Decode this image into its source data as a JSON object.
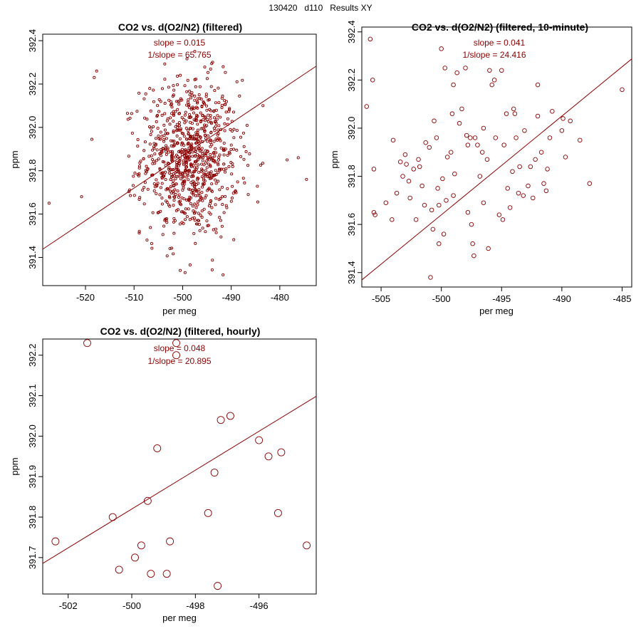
{
  "page": {
    "title": "130420   d110   Results XY"
  },
  "accent_color": "#8B0000",
  "chart_data": [
    {
      "type": "scatter",
      "title": "CO2 vs. d(O2/N2) (filtered)",
      "xlabel": "per meg",
      "ylabel": "ppm",
      "xlim": [
        -528.8,
        -472.5
      ],
      "ylim": [
        391.27,
        392.43
      ],
      "xticks": [
        -520,
        -510,
        -500,
        -490,
        -480
      ],
      "yticks": [
        391.4,
        391.6,
        391.8,
        392.0,
        392.2,
        392.4
      ],
      "annotations": [
        "slope = 0.015",
        "1/slope = 65.765"
      ],
      "fit": {
        "slope": 0.015,
        "intercept": 399.37
      },
      "marker_size": "small",
      "n_points": 900,
      "point_cloud": {
        "x_center": -498.5,
        "x_spread": 5.0,
        "y_center": 391.86,
        "y_spread": 0.18,
        "note_points": [
          [
            -527.5,
            391.65
          ],
          [
            -520.8,
            391.68
          ],
          [
            -517.7,
            392.26
          ],
          [
            -518.2,
            392.23
          ],
          [
            -474.5,
            391.76
          ],
          [
            -476.2,
            391.86
          ],
          [
            -478.5,
            391.85
          ],
          [
            -500.5,
            391.34
          ],
          [
            -499.5,
            391.33
          ],
          [
            -497.5,
            392.35
          ],
          [
            -486.5,
            391.69
          ]
        ]
      }
    },
    {
      "type": "scatter",
      "title": "CO2 vs. d(O2/N2) (filtered, 10-minute)",
      "xlabel": "per meg",
      "ylabel": "ppm",
      "xlim": [
        -506.6,
        -484.2
      ],
      "ylim": [
        391.34,
        392.42
      ],
      "xticks": [
        -505,
        -500,
        -495,
        -490,
        -485
      ],
      "yticks": [
        391.4,
        391.6,
        391.8,
        392.0,
        392.2,
        392.4
      ],
      "annotations": [
        "slope = 0.041",
        "1/slope = 24.416"
      ],
      "fit": {
        "slope": 0.041,
        "intercept": 412.14
      },
      "marker_size": "medium",
      "points": [
        [
          -505.9,
          392.37
        ],
        [
          -506.2,
          392.09
        ],
        [
          -505.7,
          392.2
        ],
        [
          -505.6,
          391.83
        ],
        [
          -505.5,
          391.64
        ],
        [
          -505.6,
          391.65
        ],
        [
          -504.6,
          391.69
        ],
        [
          -504.1,
          391.62
        ],
        [
          -503.7,
          391.73
        ],
        [
          -503.4,
          391.86
        ],
        [
          -503.0,
          391.89
        ],
        [
          -502.9,
          391.85
        ],
        [
          -502.7,
          391.78
        ],
        [
          -502.6,
          391.71
        ],
        [
          -502.3,
          391.83
        ],
        [
          -501.9,
          391.87
        ],
        [
          -501.8,
          391.84
        ],
        [
          -501.6,
          391.76
        ],
        [
          -501.4,
          391.68
        ],
        [
          -501.3,
          391.94
        ],
        [
          -500.9,
          391.38
        ],
        [
          -500.8,
          391.66
        ],
        [
          -500.7,
          391.58
        ],
        [
          -500.6,
          392.03
        ],
        [
          -500.4,
          391.96
        ],
        [
          -500.3,
          391.75
        ],
        [
          -500.2,
          391.52
        ],
        [
          -500.2,
          391.68
        ],
        [
          -500.0,
          392.33
        ],
        [
          -499.9,
          391.79
        ],
        [
          -499.8,
          391.56
        ],
        [
          -499.7,
          392.25
        ],
        [
          -499.5,
          391.88
        ],
        [
          -499.2,
          391.9
        ],
        [
          -499.1,
          392.06
        ],
        [
          -499.0,
          391.72
        ],
        [
          -499.0,
          392.18
        ],
        [
          -498.7,
          392.23
        ],
        [
          -498.5,
          392.02
        ],
        [
          -498.3,
          392.08
        ],
        [
          -498.0,
          392.25
        ],
        [
          -497.9,
          391.97
        ],
        [
          -497.8,
          391.93
        ],
        [
          -497.6,
          391.96
        ],
        [
          -497.5,
          391.6
        ],
        [
          -497.4,
          391.52
        ],
        [
          -497.3,
          391.47
        ],
        [
          -497.2,
          391.96
        ],
        [
          -497.0,
          391.93
        ],
        [
          -496.8,
          391.8
        ],
        [
          -496.6,
          391.9
        ],
        [
          -496.5,
          392.0
        ],
        [
          -496.1,
          391.5
        ],
        [
          -496.0,
          392.24
        ],
        [
          -495.8,
          392.18
        ],
        [
          -495.6,
          392.2
        ],
        [
          -495.5,
          391.96
        ],
        [
          -495.2,
          391.64
        ],
        [
          -495.0,
          392.24
        ],
        [
          -494.9,
          391.62
        ],
        [
          -494.8,
          391.93
        ],
        [
          -494.6,
          392.06
        ],
        [
          -494.5,
          391.75
        ],
        [
          -494.3,
          391.67
        ],
        [
          -494.0,
          392.08
        ],
        [
          -493.9,
          392.06
        ],
        [
          -493.8,
          391.96
        ],
        [
          -493.5,
          391.84
        ],
        [
          -493.2,
          391.72
        ],
        [
          -493.1,
          391.99
        ],
        [
          -492.8,
          391.76
        ],
        [
          -492.6,
          391.84
        ],
        [
          -492.4,
          391.71
        ],
        [
          -492.2,
          391.87
        ],
        [
          -492.0,
          392.05
        ],
        [
          -491.7,
          391.9
        ],
        [
          -491.5,
          391.77
        ],
        [
          -491.3,
          391.74
        ],
        [
          -491.2,
          391.83
        ],
        [
          -491.0,
          391.96
        ],
        [
          -490.8,
          392.07
        ],
        [
          -490.0,
          391.99
        ],
        [
          -489.7,
          391.88
        ],
        [
          -489.3,
          392.03
        ],
        [
          -488.5,
          391.95
        ],
        [
          -487.7,
          391.77
        ],
        [
          -485.0,
          392.16
        ],
        [
          -489.9,
          392.04
        ],
        [
          -492.0,
          392.18
        ],
        [
          -496.5,
          391.69
        ],
        [
          -497.8,
          391.65
        ],
        [
          -498.9,
          391.81
        ],
        [
          -499.6,
          391.7
        ],
        [
          -501.0,
          391.92
        ],
        [
          -502.1,
          391.62
        ],
        [
          -503.2,
          391.8
        ],
        [
          -504.0,
          391.95
        ],
        [
          -496.2,
          391.87
        ],
        [
          -494.1,
          391.82
        ],
        [
          -493.6,
          391.73
        ]
      ]
    },
    {
      "type": "scatter",
      "title": "CO2 vs. d(O2/N2) (filtered, hourly)",
      "xlabel": "per meg",
      "ylabel": "ppm",
      "xlim": [
        -502.8,
        -494.2
      ],
      "ylim": [
        391.61,
        392.24
      ],
      "xticks": [
        -502,
        -500,
        -498,
        -496
      ],
      "yticks": [
        391.7,
        391.8,
        391.9,
        392.0,
        392.1,
        392.2
      ],
      "annotations": [
        "slope = 0.048",
        "1/slope = 20.895"
      ],
      "fit": {
        "slope": 0.048,
        "intercept": 415.82
      },
      "marker_size": "large",
      "points": [
        [
          -502.4,
          391.74
        ],
        [
          -501.4,
          392.23
        ],
        [
          -500.6,
          391.8
        ],
        [
          -500.4,
          391.67
        ],
        [
          -499.9,
          391.7
        ],
        [
          -499.7,
          391.73
        ],
        [
          -499.5,
          391.84
        ],
        [
          -499.4,
          391.66
        ],
        [
          -499.2,
          391.97
        ],
        [
          -498.9,
          391.66
        ],
        [
          -498.8,
          391.74
        ],
        [
          -498.6,
          392.23
        ],
        [
          -498.6,
          392.2
        ],
        [
          -497.6,
          391.81
        ],
        [
          -497.4,
          391.91
        ],
        [
          -497.3,
          391.63
        ],
        [
          -497.2,
          392.04
        ],
        [
          -496.9,
          392.05
        ],
        [
          -496.0,
          391.99
        ],
        [
          -495.7,
          391.95
        ],
        [
          -495.4,
          391.81
        ],
        [
          -495.3,
          391.96
        ],
        [
          -494.5,
          391.73
        ]
      ]
    }
  ]
}
